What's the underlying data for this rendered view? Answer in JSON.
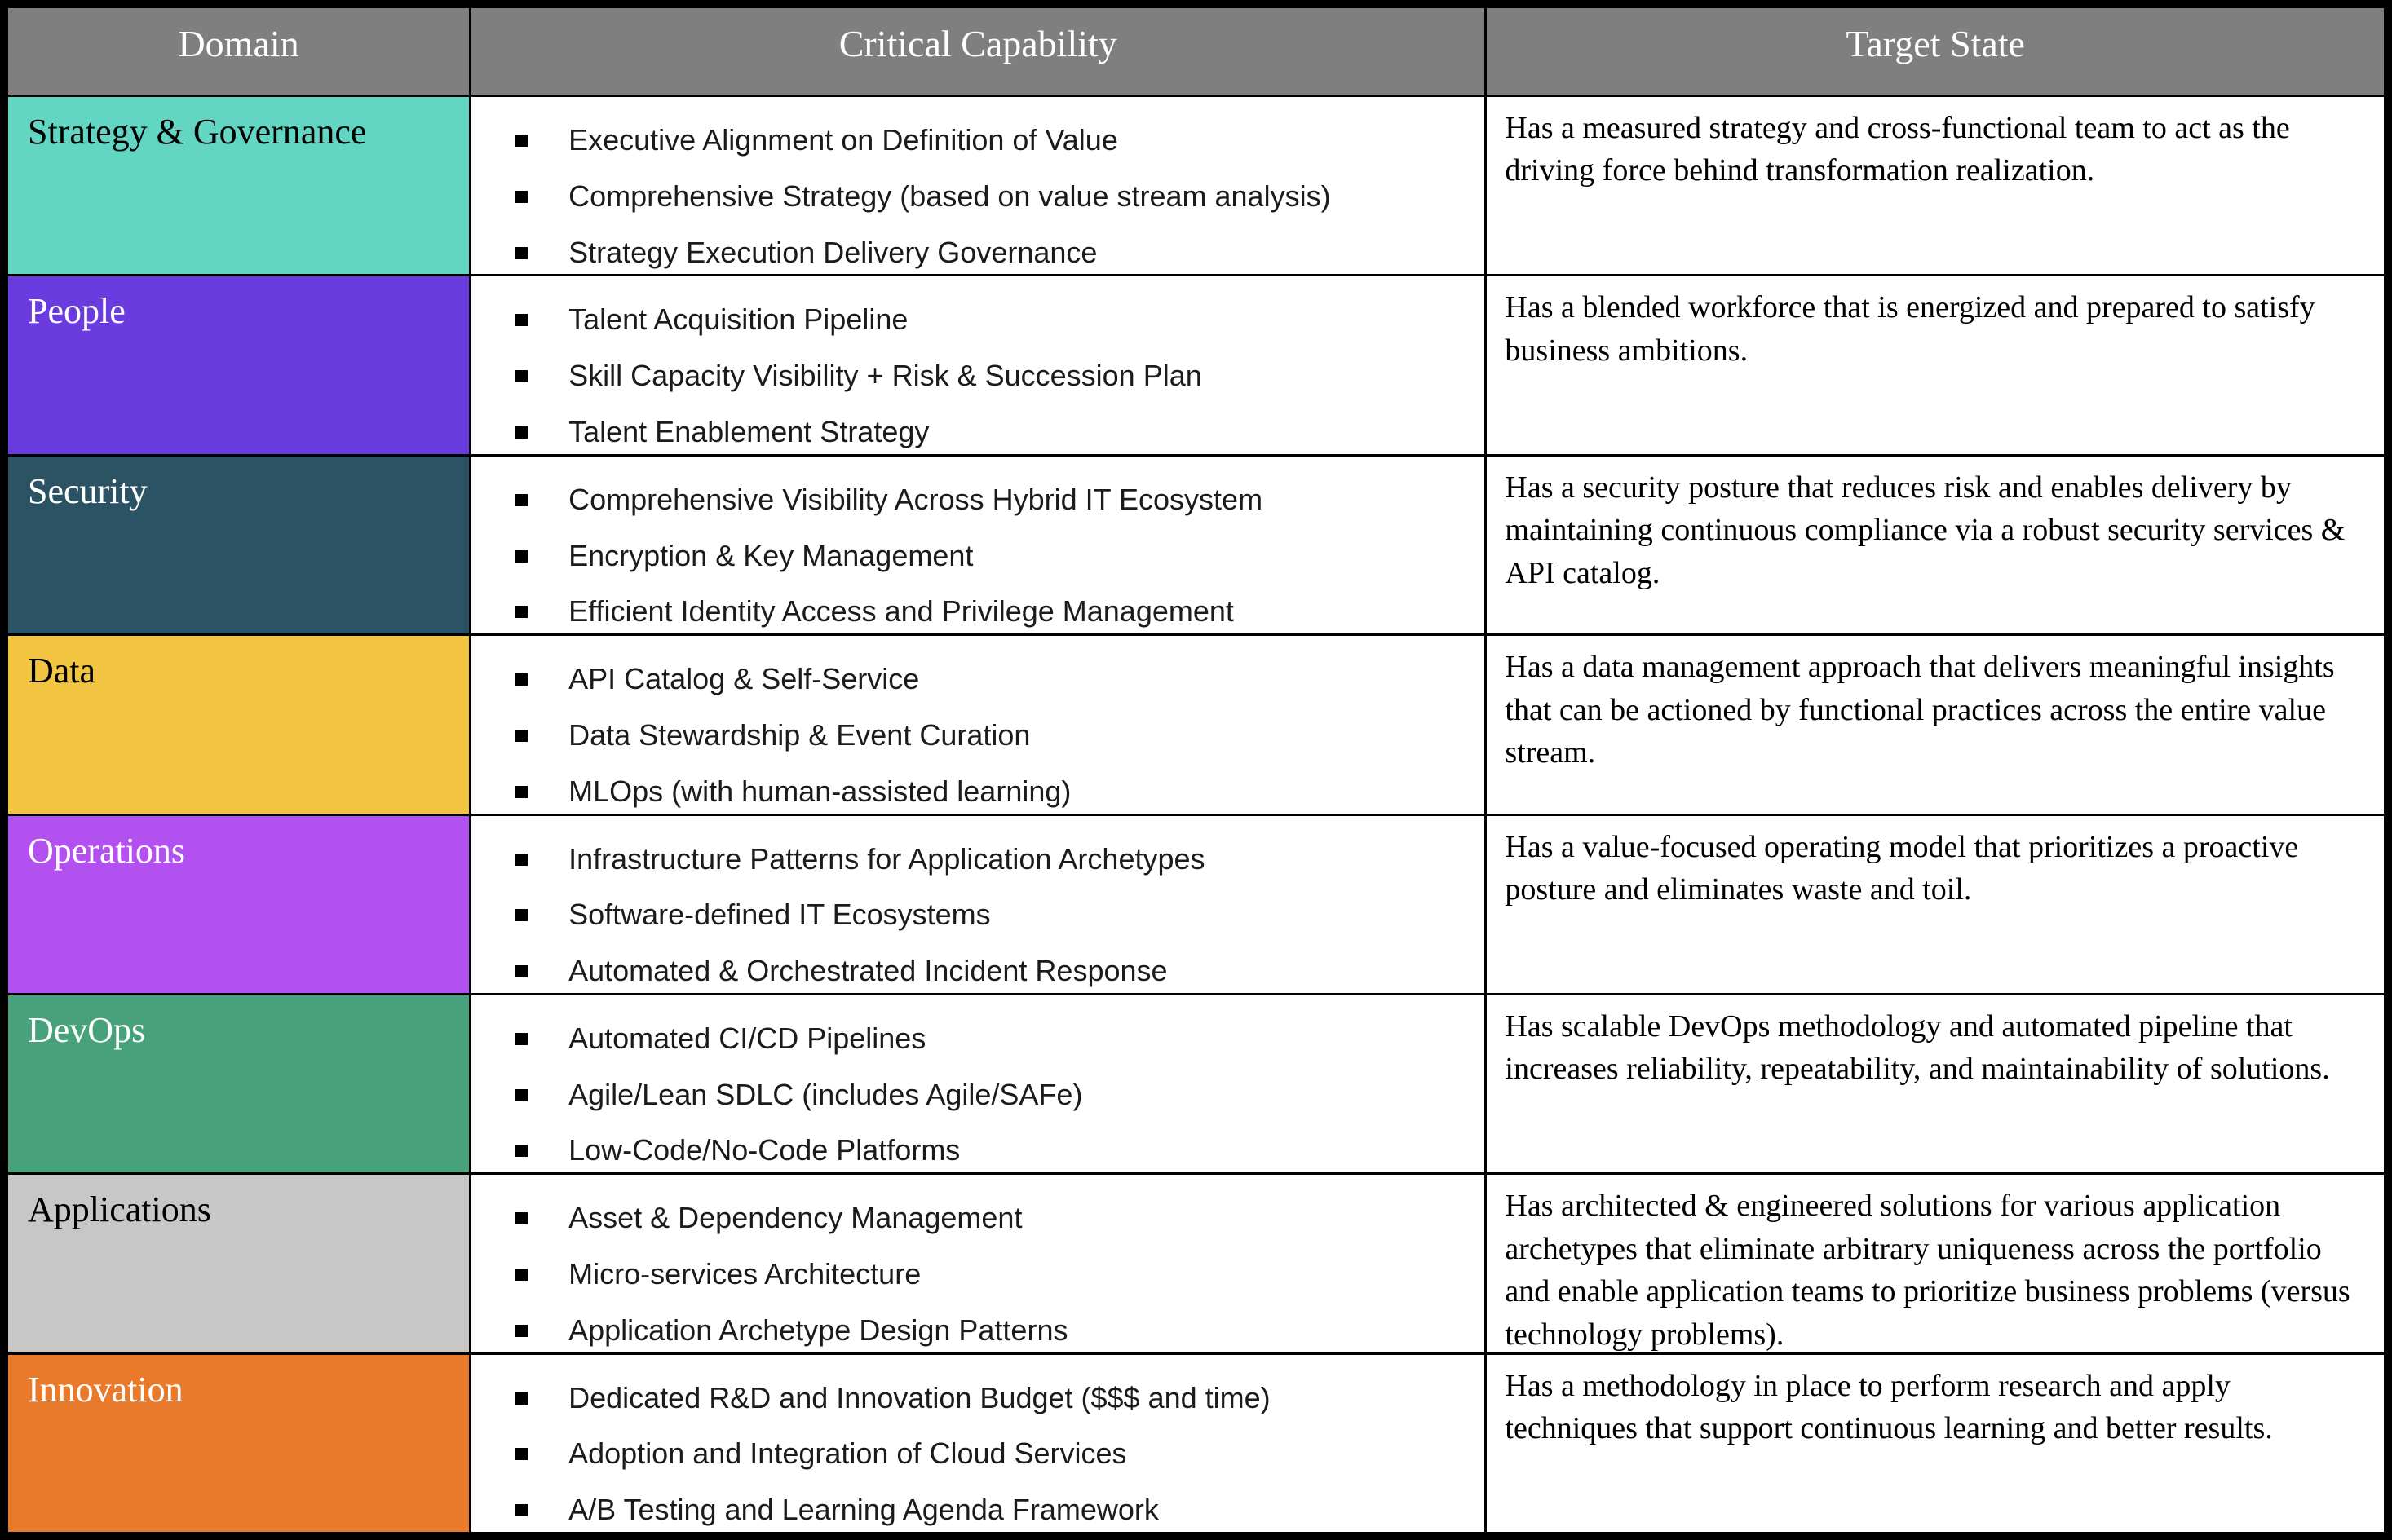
{
  "table": {
    "colors": {
      "header_bg": "#7F7F7F",
      "header_text": "#FFFFFF",
      "border": "#000000",
      "body_bg": "#FFFFFF",
      "bullet": "#000000"
    },
    "headers": {
      "domain": "Domain",
      "capability": "Critical Capability",
      "target": "Target State"
    },
    "rows": [
      {
        "domain": "Strategy & Governance",
        "domain_bg": "#63D6C3",
        "domain_text": "#000000",
        "capabilities": [
          "Executive Alignment on Definition of Value",
          "Comprehensive Strategy (based on value stream analysis)",
          "Strategy Execution Delivery Governance"
        ],
        "target": "Has a measured strategy and cross-functional team to act as the driving force behind transformation realization."
      },
      {
        "domain": "People",
        "domain_bg": "#6A3CE0",
        "domain_text": "#FFFFFF",
        "capabilities": [
          "Talent Acquisition Pipeline",
          "Skill Capacity Visibility + Risk & Succession Plan",
          "Talent Enablement Strategy"
        ],
        "target": "Has a blended workforce that is energized and prepared to satisfy business ambitions."
      },
      {
        "domain": "Security",
        "domain_bg": "#2B5364",
        "domain_text": "#FFFFFF",
        "capabilities": [
          "Comprehensive Visibility Across Hybrid IT Ecosystem",
          "Encryption & Key Management",
          "Efficient Identity Access and Privilege Management"
        ],
        "target": "Has a security posture that reduces risk and enables delivery by maintaining continuous compliance via a robust security services & API catalog."
      },
      {
        "domain": "Data",
        "domain_bg": "#F2C440",
        "domain_text": "#000000",
        "capabilities": [
          "API Catalog & Self-Service",
          "Data Stewardship & Event Curation",
          "MLOps (with human-assisted learning)"
        ],
        "target": "Has a data management approach that delivers meaningful insights that can be actioned by functional practices across the entire value stream."
      },
      {
        "domain": "Operations",
        "domain_bg": "#B351F0",
        "domain_text": "#FFFFFF",
        "capabilities": [
          "Infrastructure Patterns for Application Archetypes",
          "Software-defined IT Ecosystems",
          "Automated & Orchestrated Incident Response"
        ],
        "target": "Has a value-focused operating model that prioritizes a proactive posture and eliminates waste and toil."
      },
      {
        "domain": "DevOps",
        "domain_bg": "#47A27C",
        "domain_text": "#FFFFFF",
        "capabilities": [
          "Automated CI/CD Pipelines",
          "Agile/Lean SDLC (includes Agile/SAFe)",
          "Low-Code/No-Code Platforms"
        ],
        "target": "Has scalable DevOps methodology and automated pipeline that increases reliability, repeatability, and maintainability of solutions."
      },
      {
        "domain": "Applications",
        "domain_bg": "#C7C7C7",
        "domain_text": "#000000",
        "capabilities": [
          "Asset & Dependency Management",
          "Micro-services Architecture",
          "Application Archetype Design Patterns"
        ],
        "target": "Has architected & engineered solutions for various application archetypes that eliminate arbitrary uniqueness across the portfolio and enable application teams to prioritize business problems (versus technology problems)."
      },
      {
        "domain": "Innovation",
        "domain_bg": "#E97A2B",
        "domain_text": "#FFFFFF",
        "capabilities": [
          "Dedicated R&D and Innovation Budget ($$$ and time)",
          "Adoption and Integration of Cloud Services",
          "A/B Testing and Learning Agenda Framework"
        ],
        "target": "Has a methodology in place to perform research and apply techniques that support continuous learning and better results."
      }
    ]
  }
}
